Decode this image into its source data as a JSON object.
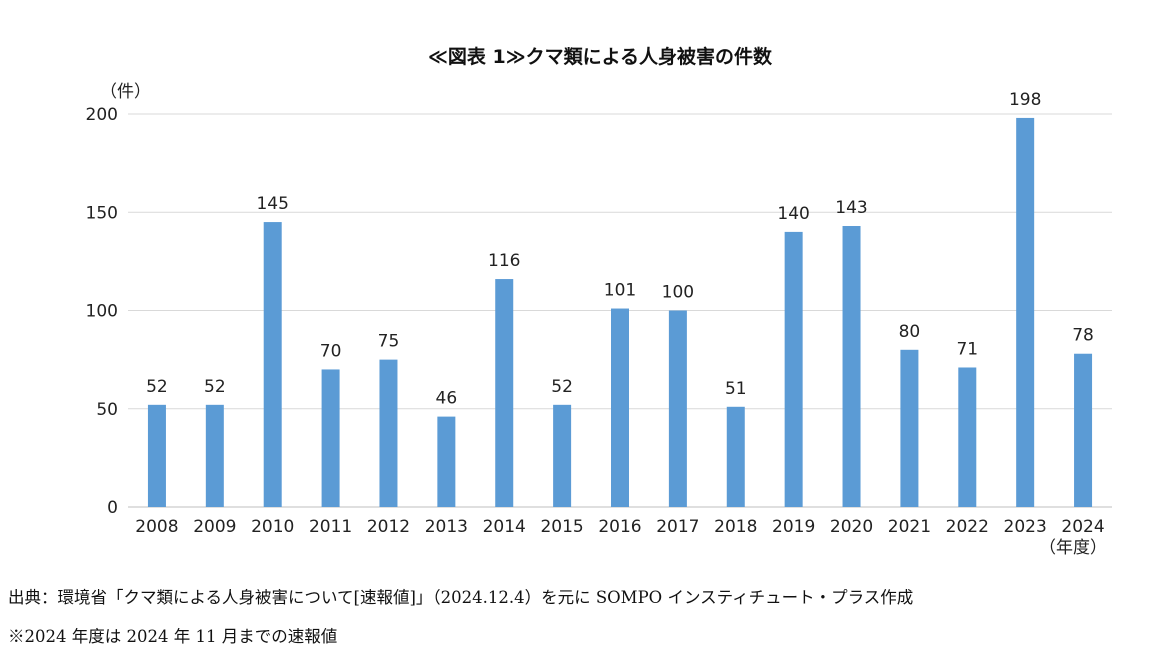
{
  "chart_data": {
    "type": "bar",
    "title": "≪図表 1≫クマ類による人身被害の件数",
    "y_unit": "（件）",
    "x_unit": "（年度）",
    "categories": [
      "2008",
      "2009",
      "2010",
      "2011",
      "2012",
      "2013",
      "2014",
      "2015",
      "2016",
      "2017",
      "2018",
      "2019",
      "2020",
      "2021",
      "2022",
      "2023",
      "2024"
    ],
    "values": [
      52,
      52,
      145,
      70,
      75,
      46,
      116,
      52,
      101,
      100,
      51,
      140,
      143,
      80,
      71,
      198,
      78
    ],
    "ylim": [
      0,
      200
    ],
    "yticks": [
      0,
      50,
      100,
      150,
      200
    ],
    "grid": true,
    "bar_color": "#5b9bd5",
    "grid_color": "#d9d9d9"
  },
  "notes": {
    "source": "出典：環境省「クマ類による人身被害について[速報値]」（2024.12.4）を元に SOMPO インスティチュート・プラス作成",
    "period": "※2024 年度は 2024 年 11 月までの速報値"
  }
}
